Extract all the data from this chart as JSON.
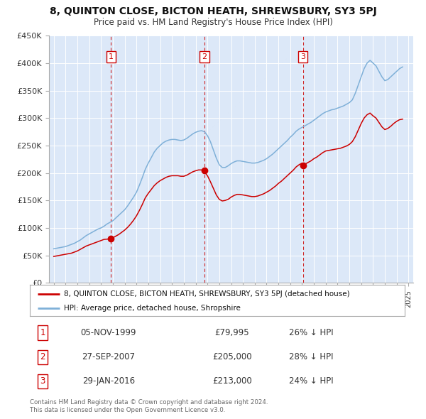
{
  "title": "8, QUINTON CLOSE, BICTON HEATH, SHREWSBURY, SY3 5PJ",
  "subtitle": "Price paid vs. HM Land Registry's House Price Index (HPI)",
  "ylim": [
    0,
    450000
  ],
  "yticks": [
    0,
    50000,
    100000,
    150000,
    200000,
    250000,
    300000,
    350000,
    400000,
    450000
  ],
  "ytick_labels": [
    "£0",
    "£50K",
    "£100K",
    "£150K",
    "£200K",
    "£250K",
    "£300K",
    "£350K",
    "£400K",
    "£450K"
  ],
  "xlim_start": 1994.6,
  "xlim_end": 2025.4,
  "background_color": "#ffffff",
  "plot_bg_color": "#dce8f8",
  "grid_color": "#ffffff",
  "sale_color": "#cc0000",
  "hpi_color": "#7fb0d8",
  "sale_label": "8, QUINTON CLOSE, BICTON HEATH, SHREWSBURY, SY3 5PJ (detached house)",
  "hpi_label": "HPI: Average price, detached house, Shropshire",
  "transactions": [
    {
      "num": 1,
      "date": "05-NOV-1999",
      "price": "79,995",
      "pct": "26%",
      "year_x": 1999.84
    },
    {
      "num": 2,
      "date": "27-SEP-2007",
      "price": "205,000",
      "pct": "28%",
      "year_x": 2007.74
    },
    {
      "num": 3,
      "date": "29-JAN-2016",
      "price": "213,000",
      "pct": "24%",
      "year_x": 2016.08
    }
  ],
  "footer": "Contains HM Land Registry data © Crown copyright and database right 2024.\nThis data is licensed under the Open Government Licence v3.0.",
  "hpi_data_x": [
    1995.0,
    1995.25,
    1995.5,
    1995.75,
    1996.0,
    1996.25,
    1996.5,
    1996.75,
    1997.0,
    1997.25,
    1997.5,
    1997.75,
    1998.0,
    1998.25,
    1998.5,
    1998.75,
    1999.0,
    1999.25,
    1999.5,
    1999.75,
    2000.0,
    2000.25,
    2000.5,
    2000.75,
    2001.0,
    2001.25,
    2001.5,
    2001.75,
    2002.0,
    2002.25,
    2002.5,
    2002.75,
    2003.0,
    2003.25,
    2003.5,
    2003.75,
    2004.0,
    2004.25,
    2004.5,
    2004.75,
    2005.0,
    2005.25,
    2005.5,
    2005.75,
    2006.0,
    2006.25,
    2006.5,
    2006.75,
    2007.0,
    2007.25,
    2007.5,
    2007.75,
    2008.0,
    2008.25,
    2008.5,
    2008.75,
    2009.0,
    2009.25,
    2009.5,
    2009.75,
    2010.0,
    2010.25,
    2010.5,
    2010.75,
    2011.0,
    2011.25,
    2011.5,
    2011.75,
    2012.0,
    2012.25,
    2012.5,
    2012.75,
    2013.0,
    2013.25,
    2013.5,
    2013.75,
    2014.0,
    2014.25,
    2014.5,
    2014.75,
    2015.0,
    2015.25,
    2015.5,
    2015.75,
    2016.0,
    2016.25,
    2016.5,
    2016.75,
    2017.0,
    2017.25,
    2017.5,
    2017.75,
    2018.0,
    2018.25,
    2018.5,
    2018.75,
    2019.0,
    2019.25,
    2019.5,
    2019.75,
    2020.0,
    2020.25,
    2020.5,
    2020.75,
    2021.0,
    2021.25,
    2021.5,
    2021.75,
    2022.0,
    2022.25,
    2022.5,
    2022.75,
    2023.0,
    2023.25,
    2023.5,
    2023.75,
    2024.0,
    2024.25,
    2024.5
  ],
  "hpi_data_y": [
    62000,
    63000,
    64000,
    65000,
    66000,
    68000,
    70000,
    72000,
    75000,
    78000,
    82000,
    86000,
    89000,
    92000,
    95000,
    98000,
    100000,
    103000,
    107000,
    110000,
    113000,
    118000,
    123000,
    128000,
    133000,
    140000,
    148000,
    156000,
    165000,
    178000,
    192000,
    207000,
    218000,
    228000,
    238000,
    245000,
    250000,
    255000,
    258000,
    260000,
    261000,
    261000,
    260000,
    259000,
    260000,
    263000,
    267000,
    271000,
    274000,
    276000,
    277000,
    275000,
    268000,
    257000,
    242000,
    227000,
    215000,
    210000,
    210000,
    213000,
    217000,
    220000,
    222000,
    222000,
    221000,
    220000,
    219000,
    218000,
    218000,
    219000,
    221000,
    223000,
    226000,
    230000,
    234000,
    239000,
    244000,
    249000,
    254000,
    259000,
    265000,
    270000,
    276000,
    280000,
    283000,
    286000,
    289000,
    292000,
    296000,
    300000,
    304000,
    308000,
    311000,
    313000,
    315000,
    316000,
    318000,
    320000,
    322000,
    325000,
    328000,
    333000,
    345000,
    360000,
    375000,
    390000,
    400000,
    405000,
    400000,
    395000,
    385000,
    375000,
    368000,
    370000,
    375000,
    380000,
    385000,
    390000,
    393000
  ],
  "sale_data_x": [
    1995.0,
    1995.25,
    1995.5,
    1995.75,
    1996.0,
    1996.25,
    1996.5,
    1996.75,
    1997.0,
    1997.25,
    1997.5,
    1997.75,
    1998.0,
    1998.25,
    1998.5,
    1998.75,
    1999.0,
    1999.25,
    1999.5,
    1999.75,
    1999.84,
    2000.0,
    2000.25,
    2000.5,
    2000.75,
    2001.0,
    2001.25,
    2001.5,
    2001.75,
    2002.0,
    2002.25,
    2002.5,
    2002.75,
    2003.0,
    2003.25,
    2003.5,
    2003.75,
    2004.0,
    2004.25,
    2004.5,
    2004.75,
    2005.0,
    2005.25,
    2005.5,
    2005.75,
    2006.0,
    2006.25,
    2006.5,
    2006.75,
    2007.0,
    2007.25,
    2007.5,
    2007.74,
    2007.75,
    2008.0,
    2008.25,
    2008.5,
    2008.75,
    2009.0,
    2009.25,
    2009.5,
    2009.75,
    2010.0,
    2010.25,
    2010.5,
    2010.75,
    2011.0,
    2011.25,
    2011.5,
    2011.75,
    2012.0,
    2012.25,
    2012.5,
    2012.75,
    2013.0,
    2013.25,
    2013.5,
    2013.75,
    2014.0,
    2014.25,
    2014.5,
    2014.75,
    2015.0,
    2015.25,
    2015.5,
    2015.75,
    2016.0,
    2016.08,
    2016.25,
    2016.5,
    2016.75,
    2017.0,
    2017.25,
    2017.5,
    2017.75,
    2018.0,
    2018.25,
    2018.5,
    2018.75,
    2019.0,
    2019.25,
    2019.5,
    2019.75,
    2020.0,
    2020.25,
    2020.5,
    2020.75,
    2021.0,
    2021.25,
    2021.5,
    2021.75,
    2022.0,
    2022.25,
    2022.5,
    2022.75,
    2023.0,
    2023.25,
    2023.5,
    2023.75,
    2024.0,
    2024.25,
    2024.5
  ],
  "sale_data_y": [
    48000,
    49000,
    50000,
    51000,
    52000,
    53000,
    54000,
    56000,
    58000,
    61000,
    64000,
    67000,
    69000,
    71000,
    73000,
    75000,
    77000,
    79000,
    79500,
    79800,
    79995,
    82000,
    85000,
    88000,
    92000,
    96000,
    101000,
    107000,
    114000,
    122000,
    132000,
    143000,
    155000,
    163000,
    170000,
    177000,
    182000,
    186000,
    189000,
    192000,
    194000,
    195000,
    195000,
    195000,
    194000,
    194000,
    196000,
    199000,
    202000,
    204000,
    205500,
    205500,
    205000,
    202000,
    195000,
    184000,
    172000,
    160000,
    152000,
    149000,
    150000,
    152000,
    156000,
    159000,
    161000,
    161000,
    160000,
    159000,
    158000,
    157000,
    157000,
    158000,
    160000,
    162000,
    165000,
    168000,
    172000,
    176000,
    181000,
    185000,
    190000,
    195000,
    200000,
    205000,
    211000,
    215000,
    218000,
    213000,
    216000,
    219000,
    222000,
    226000,
    229000,
    233000,
    237000,
    240000,
    241000,
    242000,
    243000,
    244000,
    245000,
    247000,
    249000,
    252000,
    257000,
    266000,
    278000,
    290000,
    300000,
    306000,
    309000,
    304000,
    300000,
    292000,
    284000,
    279000,
    281000,
    285000,
    290000,
    294000,
    297000,
    298000
  ]
}
